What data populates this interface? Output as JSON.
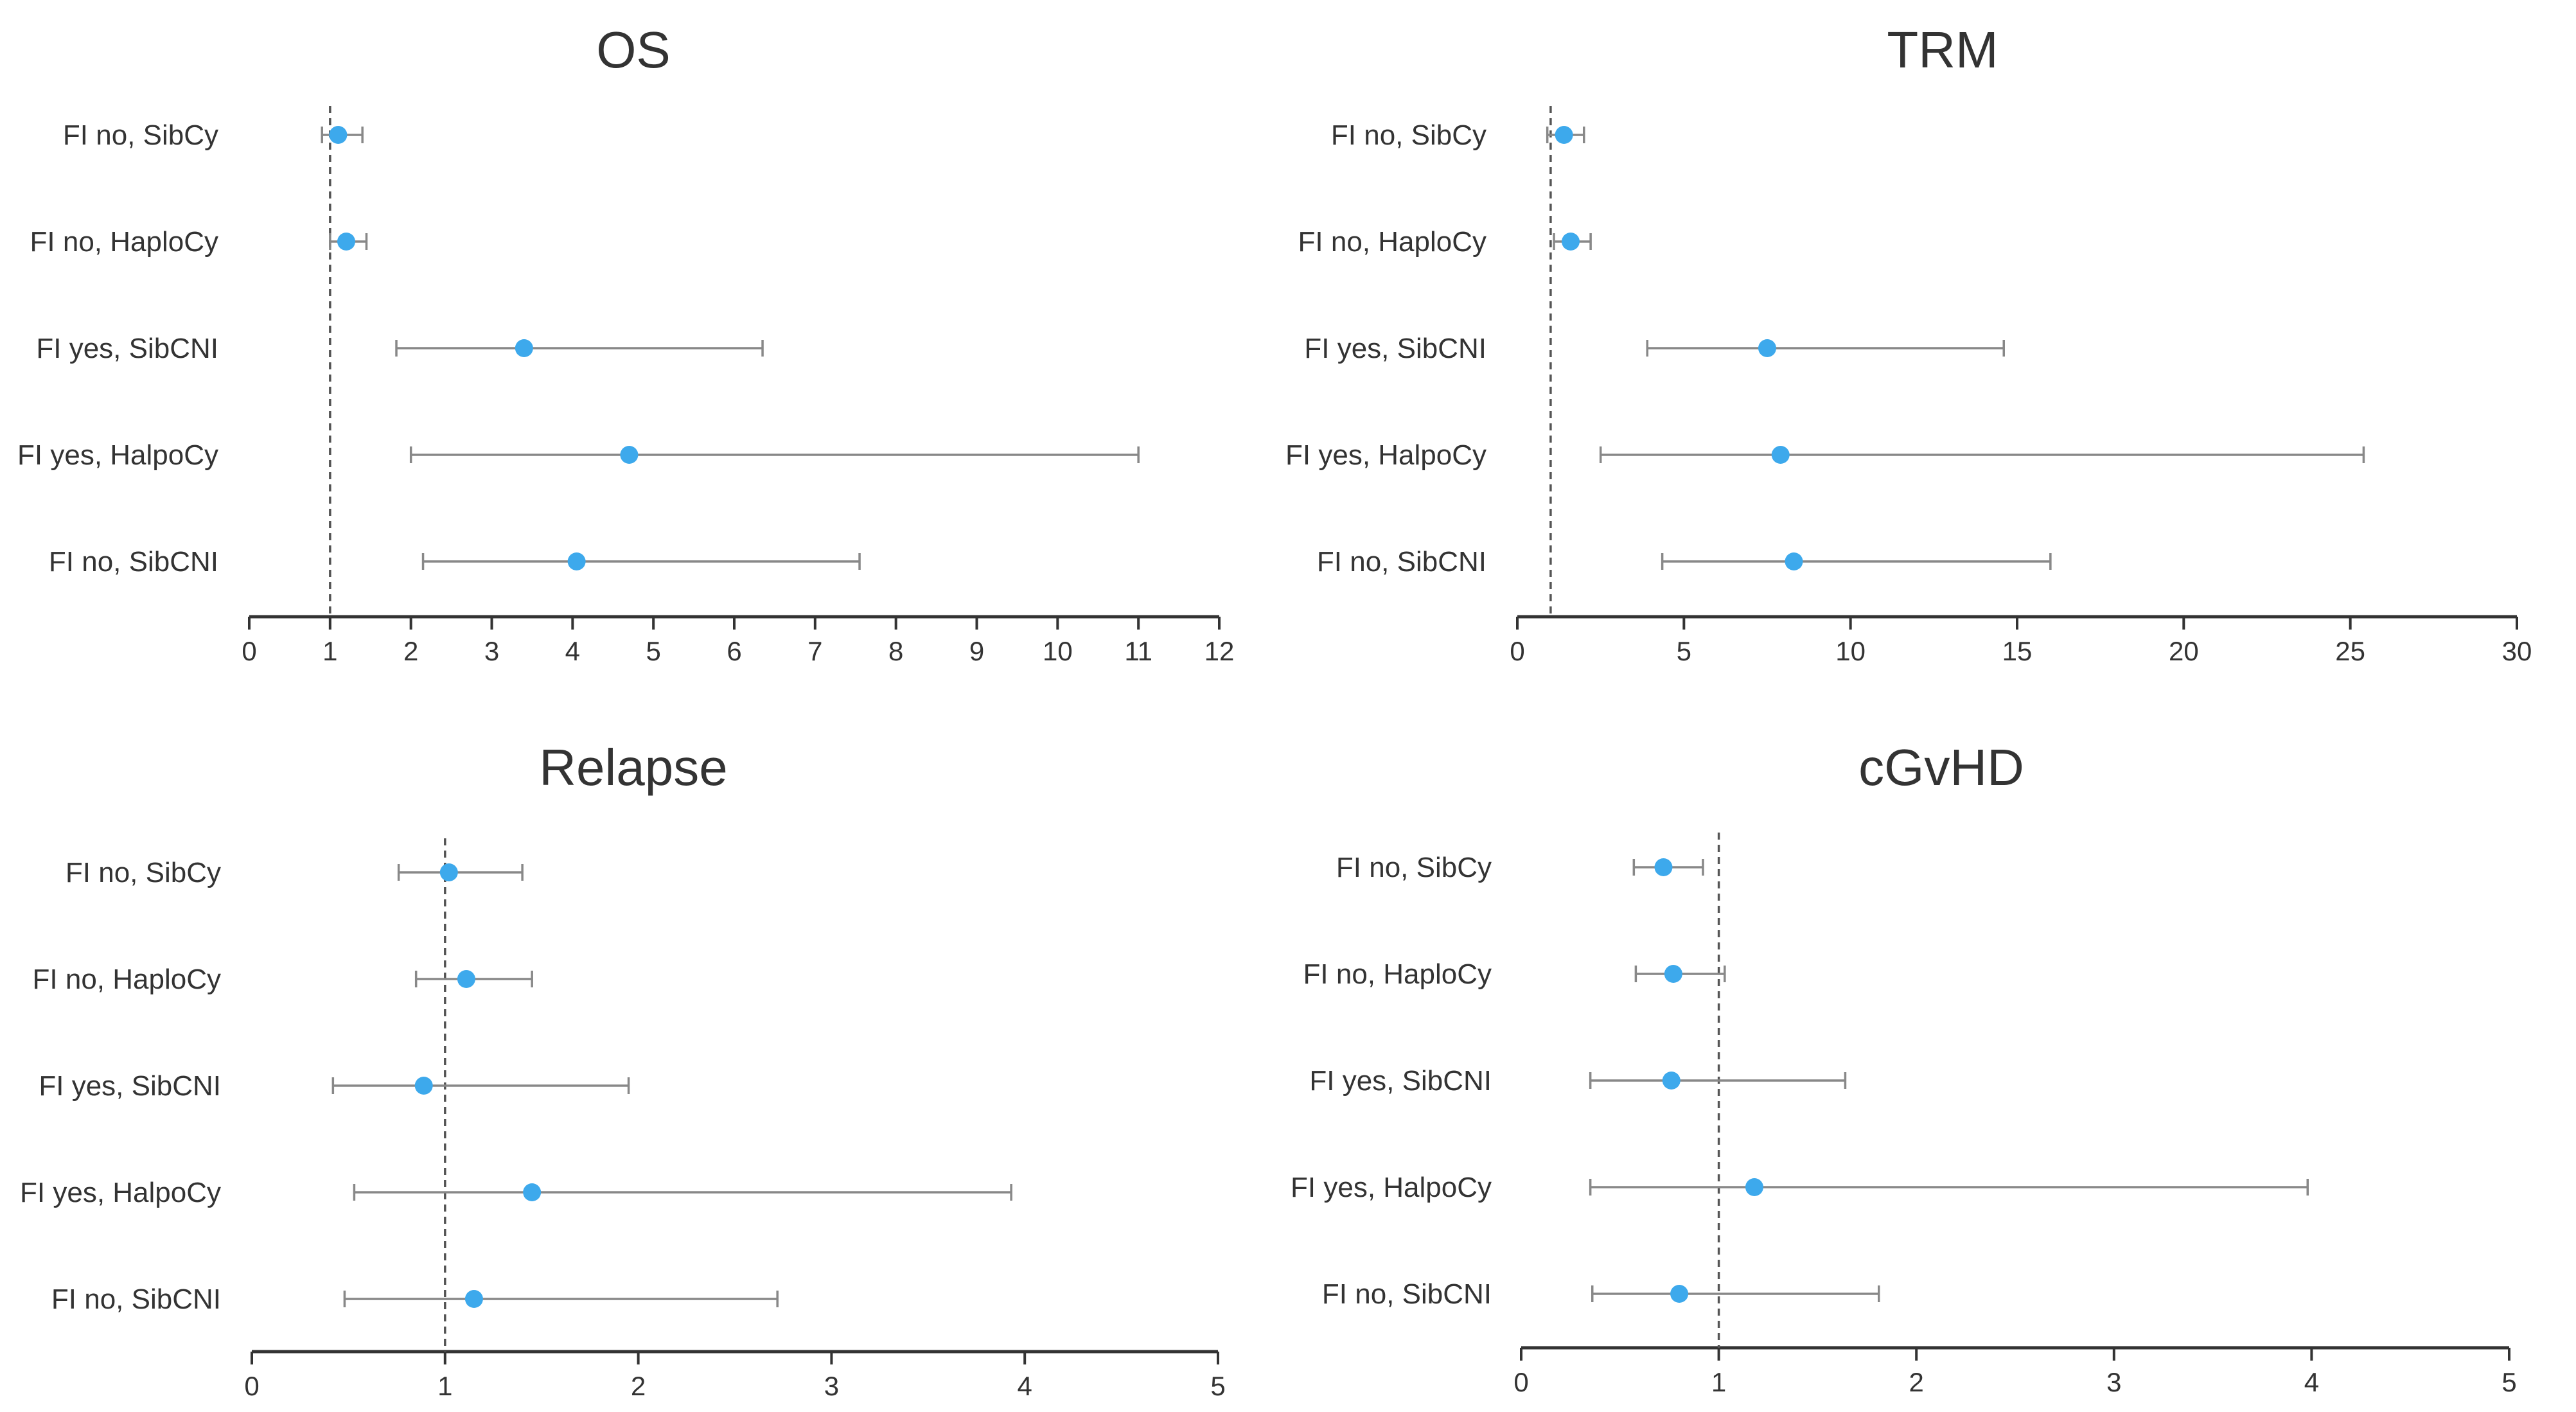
{
  "marker_color": "#3DA9EC",
  "ci_color": "#888888",
  "axis_color": "#333333",
  "reference_line_color": "#555555",
  "chart_data": [
    {
      "type": "forest",
      "title": "OS",
      "categories": [
        "FI no, SibCy",
        "FI no, HaploCy",
        "FI yes, SibCNI",
        "FI yes, HalpoCy",
        "FI no, SibCNI"
      ],
      "estimate": [
        1.1,
        1.2,
        3.4,
        4.7,
        4.05
      ],
      "lower": [
        0.9,
        1.0,
        1.82,
        2.0,
        2.15
      ],
      "upper": [
        1.4,
        1.45,
        6.35,
        11.0,
        7.55
      ],
      "reference": 1,
      "xlim": [
        0,
        12
      ],
      "ticks": [
        0,
        1,
        2,
        3,
        4,
        5,
        6,
        7,
        8,
        9,
        10,
        11,
        12
      ],
      "xlabel": "",
      "ylabel": ""
    },
    {
      "type": "forest",
      "title": "TRM",
      "categories": [
        "FI no, SibCy",
        "FI no, HaploCy",
        "FI yes, SibCNI",
        "FI yes, HalpoCy",
        "FI no, SibCNI"
      ],
      "estimate": [
        1.4,
        1.6,
        7.5,
        7.9,
        8.3
      ],
      "lower": [
        0.9,
        1.1,
        3.9,
        2.5,
        4.35
      ],
      "upper": [
        2.0,
        2.2,
        14.6,
        25.4,
        16.0
      ],
      "reference": 1,
      "xlim": [
        0,
        30
      ],
      "ticks": [
        0,
        5,
        10,
        15,
        20,
        25,
        30
      ],
      "xlabel": "",
      "ylabel": ""
    },
    {
      "type": "forest",
      "title": "Relapse",
      "categories": [
        "FI no, SibCy",
        "FI no, HaploCy",
        "FI yes, SibCNI",
        "FI yes, HalpoCy",
        "FI no, SibCNI"
      ],
      "estimate": [
        1.02,
        1.11,
        0.89,
        1.45,
        1.15
      ],
      "lower": [
        0.76,
        0.85,
        0.42,
        0.53,
        0.48
      ],
      "upper": [
        1.4,
        1.45,
        1.95,
        3.93,
        2.72
      ],
      "reference": 1,
      "xlim": [
        0,
        5
      ],
      "ticks": [
        0,
        1,
        2,
        3,
        4,
        5
      ],
      "xlabel": "",
      "ylabel": ""
    },
    {
      "type": "forest",
      "title": "cGvHD",
      "categories": [
        "FI no, SibCy",
        "FI no, HaploCy",
        "FI yes, SibCNI",
        "FI yes, HalpoCy",
        "FI no, SibCNI"
      ],
      "estimate": [
        0.72,
        0.77,
        0.76,
        1.18,
        0.8
      ],
      "lower": [
        0.57,
        0.58,
        0.35,
        0.35,
        0.36
      ],
      "upper": [
        0.92,
        1.03,
        1.64,
        3.98,
        1.81
      ],
      "reference": 1,
      "xlim": [
        0,
        5
      ],
      "ticks": [
        0,
        1,
        2,
        3,
        4,
        5
      ],
      "xlabel": "",
      "ylabel": ""
    }
  ]
}
